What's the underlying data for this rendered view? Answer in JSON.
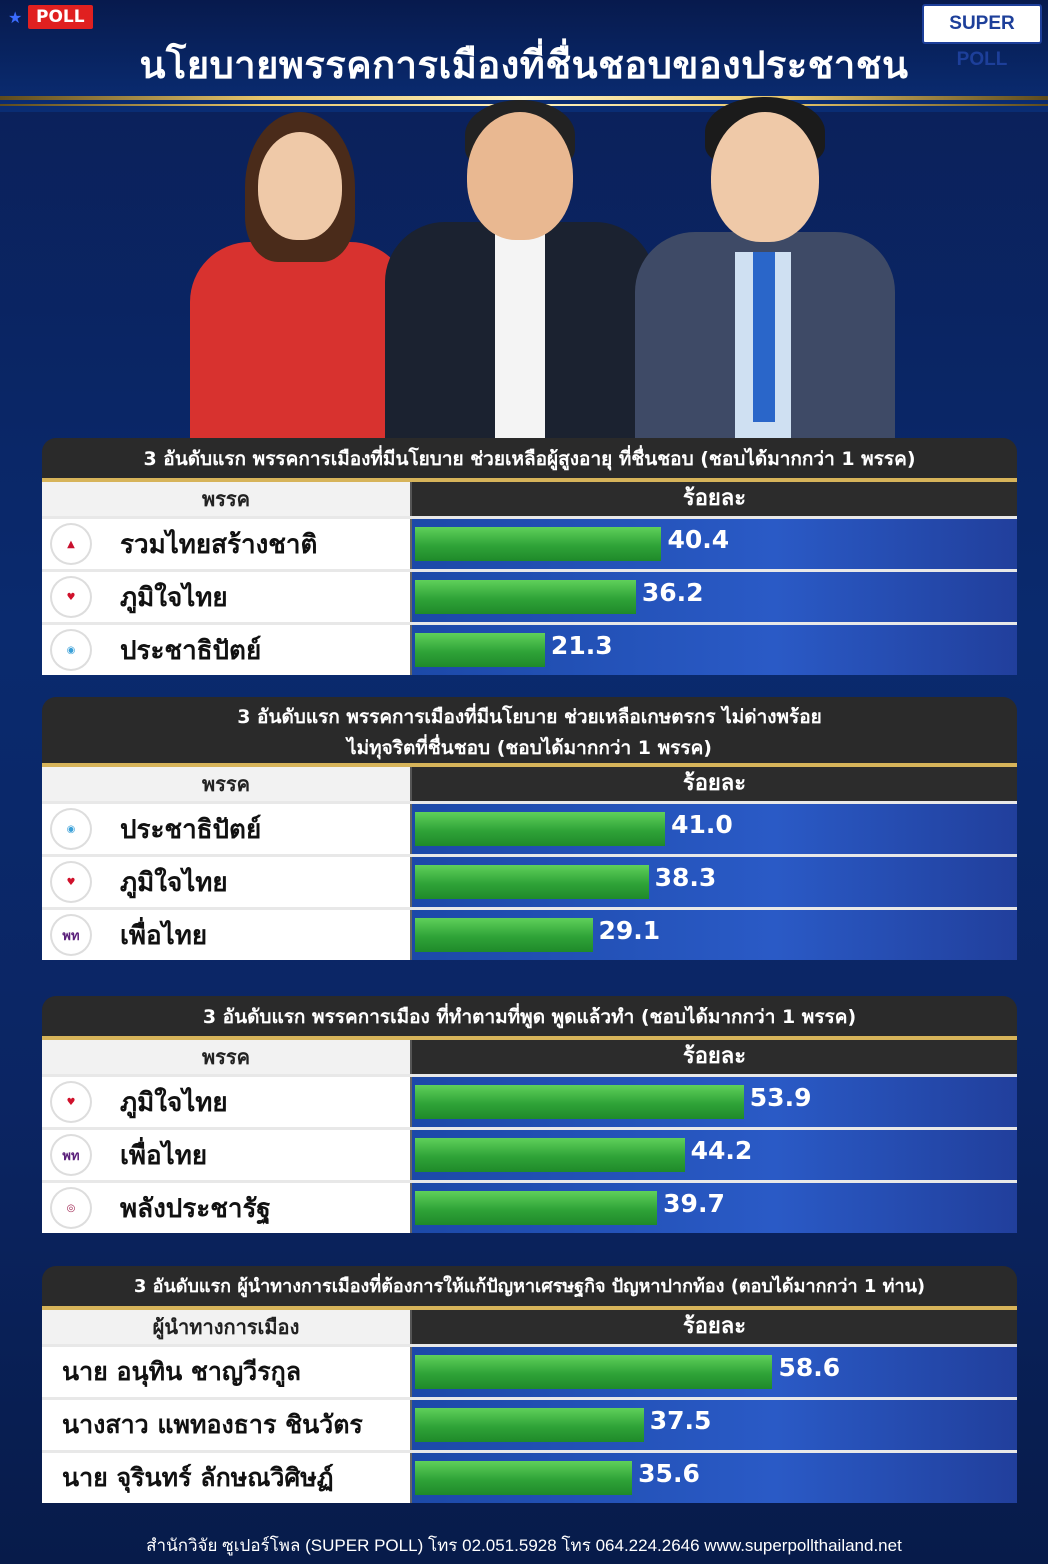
{
  "header": {
    "poll_tag": "POLL",
    "logo_text": "SUPER POLL",
    "title": "นโยบายพรรคการเมืองที่ชื่นชอบของประชาชน"
  },
  "chart_data": [
    {
      "type": "bar",
      "title": "3 อันดับแรก พรรคการเมืองที่มีนโยบาย ช่วยเหลือผู้สูงอายุ ที่ชื่นชอบ (ชอบได้มากกว่า 1 พรรค)",
      "col_label": "พรรค",
      "value_label": "ร้อยละ",
      "categories": [
        "รวมไทยสร้างชาติ",
        "ภูมิใจไทย",
        "ประชาธิปัตย์"
      ],
      "values": [
        40.4,
        36.2,
        21.3
      ],
      "logos": [
        "รวมไทยสร้างชาติ-logo",
        "ภูมิใจไทย-logo",
        "ประชาธิปัตย์-logo"
      ]
    },
    {
      "type": "bar",
      "title_line1": "3 อันดับแรก พรรคการเมืองที่มีนโยบาย ช่วยเหลือเกษตรกร ไม่ด่างพร้อย",
      "title_line2": "ไม่ทุจริตที่ชื่นชอบ  (ชอบได้มากกว่า 1 พรรค)",
      "col_label": "พรรค",
      "value_label": "ร้อยละ",
      "categories": [
        "ประชาธิปัตย์",
        "ภูมิใจไทย",
        "เพื่อไทย"
      ],
      "values": [
        41.0,
        38.3,
        29.1
      ],
      "value_text": [
        "41.0",
        "38.3",
        "29.1"
      ]
    },
    {
      "type": "bar",
      "title": "3 อันดับแรก พรรคการเมือง ที่ทำตามที่พูด พูดแล้วทำ (ชอบได้มากกว่า 1 พรรค)",
      "col_label": "พรรค",
      "value_label": "ร้อยละ",
      "categories": [
        "ภูมิใจไทย",
        "เพื่อไทย",
        "พลังประชารัฐ"
      ],
      "values": [
        53.9,
        44.2,
        39.7
      ]
    },
    {
      "type": "bar",
      "title": "3 อันดับแรก ผู้นำทางการเมืองที่ต้องการให้แก้ปัญหาเศรษฐกิจ ปัญหาปากท้อง  (ตอบได้มากกว่า 1 ท่าน)",
      "col_label": "ผู้นำทางการเมือง",
      "value_label": "ร้อยละ",
      "categories": [
        "นาย อนุทิน ชาญวีรกูล",
        "นางสาว แพทองธาร ชินวัตร",
        "นาย จุรินทร์ ลักษณวิศิษฏ์"
      ],
      "values": [
        58.6,
        37.5,
        35.6
      ]
    }
  ],
  "footer": {
    "text": "สำนักวิจัย ซูเปอร์โพล (SUPER POLL) โทร 02.051.5928 โทร 064.224.2646    www.superpollthailand.net"
  },
  "colors": {
    "bar_green": "#2fa338",
    "bg_blue": "#0a2a6e",
    "gold": "#d7b45a",
    "poll_red": "#e02020"
  }
}
